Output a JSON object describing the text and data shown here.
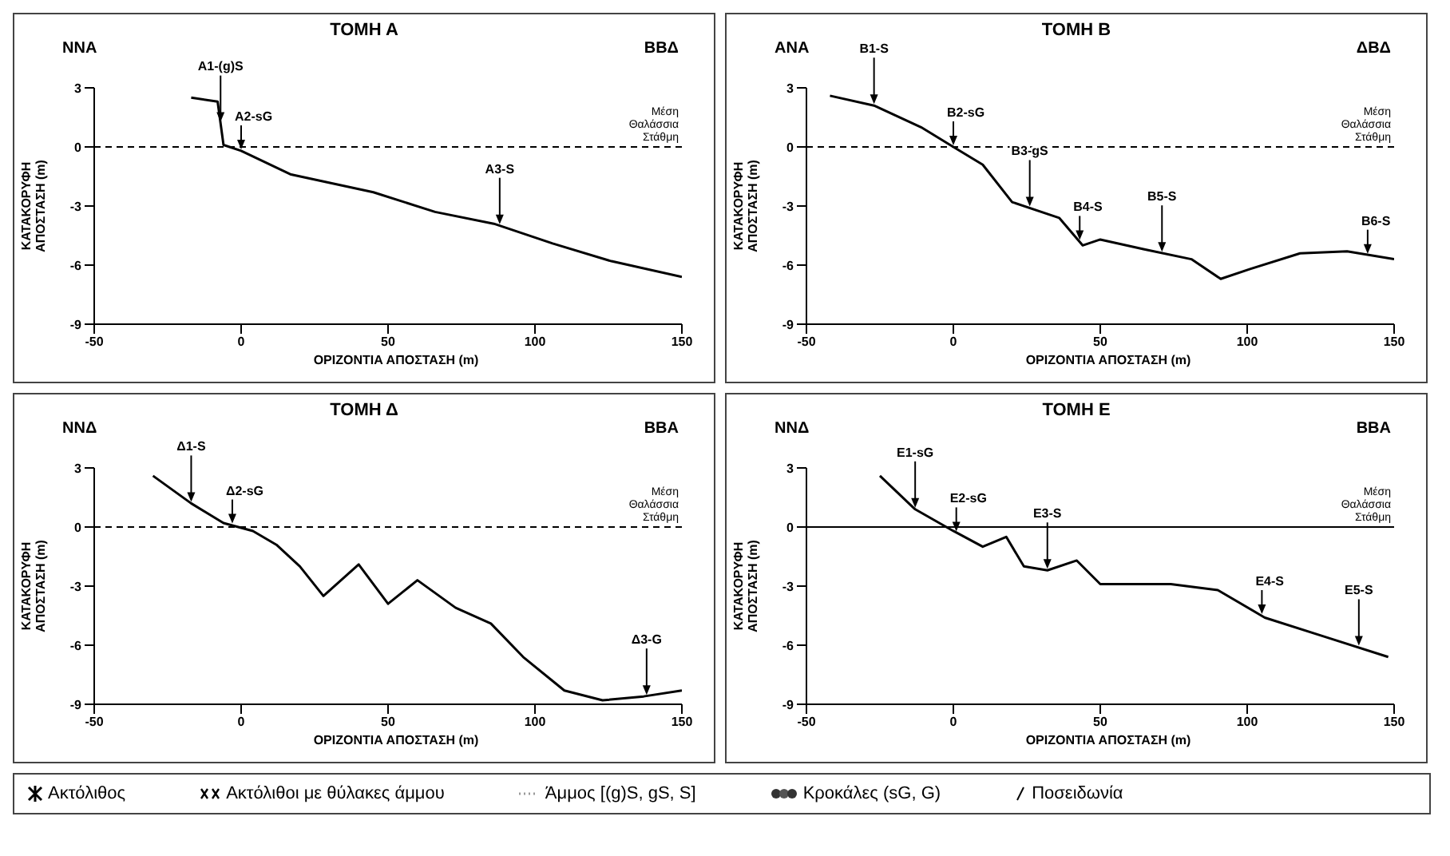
{
  "chart_data": [
    {
      "type": "line",
      "title": "ΤΟΜΗ Α",
      "xlabel": "ΟΡΙΖΟΝΤΙΑ ΑΠΟΣΤΑΣΗ (m)",
      "ylabel": "ΚΑΤΑΚΟΡΥΦΗ ΑΠΟΣΤΑΣΗ (m)",
      "xlim": [
        -50,
        150
      ],
      "ylim": [
        -9,
        3
      ],
      "xticks": [
        -50,
        0,
        50,
        100,
        150
      ],
      "yticks": [
        -9,
        -6,
        -3,
        0,
        3
      ],
      "series": [
        {
          "color": "#000000",
          "x": [
            -17,
            -8,
            -6,
            0,
            17,
            45,
            66,
            86,
            106,
            126,
            150
          ],
          "values": [
            2.5,
            2.3,
            0.1,
            -0.2,
            -1.4,
            -2.3,
            -3.3,
            -3.9,
            -4.9,
            -5.8,
            -6.6
          ]
        }
      ],
      "ref_lines": [
        {
          "axis": "y",
          "value": 0,
          "label": "Μέση Θαλάσσια Στάθμη",
          "line_style": "dashed"
        }
      ],
      "annotations": [
        "ΝΝΑ",
        "ΒΒΔ",
        {
          "text": "Α1-(g)S",
          "x": -7,
          "y": 1.2
        },
        {
          "text": "Α2-sG",
          "x": 0,
          "y": -0.2
        },
        {
          "text": "Α3-S",
          "x": 88,
          "y": -4.0
        }
      ]
    },
    {
      "type": "line",
      "title": "ΤΟΜΗ Β",
      "xlabel": "ΟΡΙΖΟΝΤΙΑ ΑΠΟΣΤΑΣΗ (m)",
      "ylabel": "ΚΑΤΑΚΟΡΥΦΗ ΑΠΟΣΤΑΣΗ (m)",
      "xlim": [
        -50,
        150
      ],
      "ylim": [
        -9,
        3
      ],
      "xticks": [
        -50,
        0,
        50,
        100,
        150
      ],
      "yticks": [
        -9,
        -6,
        -3,
        0,
        3
      ],
      "series": [
        {
          "color": "#000000",
          "x": [
            -42,
            -27,
            -11,
            0,
            10,
            20,
            36,
            44,
            50,
            65,
            81,
            91,
            101,
            118,
            134,
            150
          ],
          "values": [
            2.6,
            2.1,
            1.0,
            0,
            -0.9,
            -2.8,
            -3.6,
            -5.0,
            -4.7,
            -5.2,
            -5.7,
            -6.7,
            -6.2,
            -5.4,
            -5.3,
            -5.7
          ]
        }
      ],
      "ref_lines": [
        {
          "axis": "y",
          "value": 0,
          "label": "Μέση Θαλάσσια Στάθμη",
          "line_style": "dashed"
        }
      ],
      "annotations": [
        "ΑΝΑ",
        "ΔΒΔ",
        {
          "text": "Β1-S",
          "x": -27,
          "y": 2.1
        },
        {
          "text": "Β2-sG",
          "x": 0,
          "y": 0
        },
        {
          "text": "Β3-gS",
          "x": 26,
          "y": -3.1
        },
        {
          "text": "Β4-S",
          "x": 43,
          "y": -4.8
        },
        {
          "text": "Β5-S",
          "x": 71,
          "y": -5.4
        },
        {
          "text": "Β6-S",
          "x": 141,
          "y": -5.5
        }
      ]
    },
    {
      "type": "line",
      "title": "ΤΟΜΗ Δ",
      "xlabel": "ΟΡΙΖΟΝΤΙΑ ΑΠΟΣΤΑΣΗ (m)",
      "ylabel": "ΚΑΤΑΚΟΡΥΦΗ ΑΠΟΣΤΑΣΗ (m)",
      "xlim": [
        -50,
        150
      ],
      "ylim": [
        -9,
        3
      ],
      "xticks": [
        -50,
        0,
        50,
        100,
        150
      ],
      "yticks": [
        -9,
        -6,
        -3,
        0,
        3
      ],
      "series": [
        {
          "color": "#000000",
          "x": [
            -30,
            -17,
            -6,
            4,
            12,
            20,
            28,
            40,
            50,
            60,
            73,
            85,
            96,
            110,
            123,
            137,
            150
          ],
          "values": [
            2.6,
            1.2,
            0.2,
            -0.2,
            -0.9,
            -2.0,
            -3.5,
            -1.9,
            -3.9,
            -2.7,
            -4.1,
            -4.9,
            -6.6,
            -8.3,
            -8.8,
            -8.6,
            -8.3
          ]
        }
      ],
      "ref_lines": [
        {
          "axis": "y",
          "value": 0,
          "label": "Μέση Θαλάσσια Στάθμη",
          "line_style": "dashed"
        }
      ],
      "annotations": [
        "ΝΝΔ",
        "ΒΒΑ",
        {
          "text": "Δ1-S",
          "x": -17,
          "y": 1.2
        },
        {
          "text": "Δ2-sG",
          "x": -3,
          "y": 0.1
        },
        {
          "text": "Δ3-G",
          "x": 138,
          "y": -8.6
        }
      ]
    },
    {
      "type": "line",
      "title": "ΤΟΜΗ Ε",
      "xlabel": "ΟΡΙΖΟΝΤΙΑ ΑΠΟΣΤΑΣΗ (m)",
      "ylabel": "ΚΑΤΑΚΟΡΥΦΗ ΑΠΟΣΤΑΣΗ (m)",
      "xlim": [
        -50,
        150
      ],
      "ylim": [
        -9,
        3
      ],
      "xticks": [
        -50,
        0,
        50,
        100,
        150
      ],
      "yticks": [
        -9,
        -6,
        -3,
        0,
        3
      ],
      "series": [
        {
          "color": "#000000",
          "x": [
            -25,
            -13,
            0,
            10,
            18,
            24,
            32,
            42,
            50,
            74,
            90,
            106,
            127,
            148
          ],
          "values": [
            2.6,
            0.9,
            -0.2,
            -1.0,
            -0.5,
            -2.0,
            -2.2,
            -1.7,
            -2.9,
            -2.9,
            -3.2,
            -4.6,
            -5.6,
            -6.6
          ]
        }
      ],
      "ref_lines": [
        {
          "axis": "y",
          "value": 0,
          "label": "Μέση Θαλάσσια Στάθμη",
          "line_style": "solid"
        }
      ],
      "annotations": [
        "ΝΝΔ",
        "ΒΒΑ",
        {
          "text": "Ε1-sG",
          "x": -13,
          "y": 0.9
        },
        {
          "text": "Ε2-sG",
          "x": 1,
          "y": -0.3
        },
        {
          "text": "Ε3-S",
          "x": 32,
          "y": -2.2
        },
        {
          "text": "Ε4-S",
          "x": 105,
          "y": -4.5
        },
        {
          "text": "Ε5-S",
          "x": 138,
          "y": -6.1
        }
      ]
    },
    {
      "type": "other",
      "annotations": [
        "Ακτόλιθος",
        "Ακτόλιθοι με θύλακες άμμου",
        "Άμμος [(g)S, gS, S]",
        "Κροκάλες (sG, G)",
        "Ποσειδωνία"
      ]
    }
  ]
}
